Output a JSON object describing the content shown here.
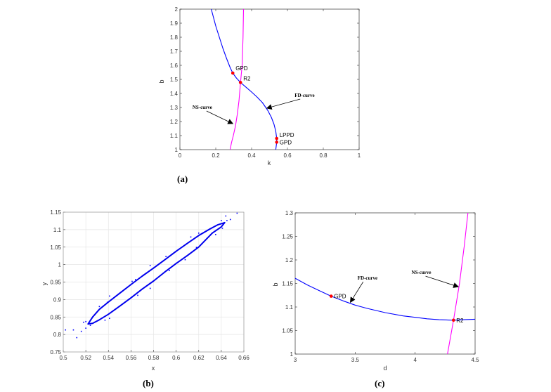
{
  "chart_data": [
    {
      "id": "a",
      "type": "line",
      "caption": "(a)",
      "xlabel": "k",
      "ylabel": "b",
      "xlim": [
        0,
        1
      ],
      "ylim": [
        1,
        2
      ],
      "xticks": [
        0,
        0.2,
        0.4,
        0.6,
        0.8,
        1
      ],
      "xtick_labels": [
        "0",
        "0.2",
        "0.4",
        "0.6",
        "0.8",
        "1"
      ],
      "yticks": [
        1,
        1.1,
        1.2,
        1.3,
        1.4,
        1.5,
        1.6,
        1.7,
        1.8,
        1.9,
        2
      ],
      "ytick_labels": [
        "1",
        "1.1",
        "1.2",
        "1.3",
        "1.4",
        "1.5",
        "1.6",
        "1.7",
        "1.8",
        "1.9",
        "2"
      ],
      "grid": false,
      "series": [
        {
          "color": "#0000ff",
          "points": [
            [
              0.175,
              2
            ],
            [
              0.2,
              1.88
            ],
            [
              0.22,
              1.8
            ],
            [
              0.24,
              1.72
            ],
            [
              0.26,
              1.65
            ],
            [
              0.28,
              1.585
            ],
            [
              0.295,
              1.545
            ],
            [
              0.315,
              1.51
            ],
            [
              0.338,
              1.478
            ],
            [
              0.37,
              1.443
            ],
            [
              0.4,
              1.41
            ],
            [
              0.43,
              1.375
            ],
            [
              0.46,
              1.335
            ],
            [
              0.49,
              1.28
            ],
            [
              0.51,
              1.23
            ],
            [
              0.525,
              1.18
            ],
            [
              0.535,
              1.13
            ],
            [
              0.54,
              1.08
            ],
            [
              0.54,
              1.053
            ],
            [
              0.535,
              1.0
            ]
          ]
        },
        {
          "color": "#ff00ff",
          "points": [
            [
              0.355,
              2
            ],
            [
              0.352,
              1.8
            ],
            [
              0.347,
              1.6
            ],
            [
              0.338,
              1.478
            ],
            [
              0.33,
              1.35
            ],
            [
              0.32,
              1.25
            ],
            [
              0.31,
              1.17
            ],
            [
              0.298,
              1.1
            ],
            [
              0.288,
              1.05
            ],
            [
              0.28,
              1.0
            ]
          ]
        }
      ],
      "markers": [
        {
          "label": "GPD",
          "x": 0.295,
          "y": 1.545
        },
        {
          "label": "R2",
          "x": 0.338,
          "y": 1.478
        },
        {
          "label": "LPPD",
          "x": 0.54,
          "y": 1.08
        },
        {
          "label": "GPD",
          "x": 0.54,
          "y": 1.053
        }
      ],
      "annotations": [
        {
          "text": "NS-curve",
          "x": 0.07,
          "y": 1.29,
          "arrow_to": [
            0.295,
            1.185
          ]
        },
        {
          "text": "FD-curve",
          "x": 0.64,
          "y": 1.375,
          "arrow_to": [
            0.485,
            1.295
          ]
        }
      ]
    },
    {
      "id": "b",
      "type": "scatter",
      "caption": "(b)",
      "xlabel": "x",
      "ylabel": "y",
      "xlim": [
        0.5,
        0.66
      ],
      "ylim": [
        0.75,
        1.15
      ],
      "xticks": [
        0.5,
        0.52,
        0.54,
        0.56,
        0.58,
        0.6,
        0.62,
        0.64,
        0.66
      ],
      "xtick_labels": [
        "0.5",
        "0.52",
        "0.54",
        "0.56",
        "0.58",
        "0.6",
        "0.62",
        "0.64",
        "0.66"
      ],
      "yticks": [
        0.75,
        0.8,
        0.85,
        0.9,
        0.95,
        1,
        1.05,
        1.1,
        1.15
      ],
      "ytick_labels": [
        "0.75",
        "0.8",
        "0.85",
        "0.9",
        "0.95",
        "1",
        "1.05",
        "1.1",
        "1.15"
      ],
      "grid": true,
      "series": [
        {
          "color": "#0000ee",
          "closed": true,
          "points": [
            [
              0.522,
              0.83
            ],
            [
              0.526,
              0.85
            ],
            [
              0.532,
              0.872
            ],
            [
              0.54,
              0.893
            ],
            [
              0.55,
              0.918
            ],
            [
              0.56,
              0.943
            ],
            [
              0.57,
              0.967
            ],
            [
              0.58,
              0.99
            ],
            [
              0.59,
              1.014
            ],
            [
              0.6,
              1.038
            ],
            [
              0.61,
              1.061
            ],
            [
              0.62,
              1.083
            ],
            [
              0.63,
              1.102
            ],
            [
              0.637,
              1.114
            ],
            [
              0.643,
              1.12
            ],
            [
              0.64,
              1.108
            ],
            [
              0.632,
              1.09
            ],
            [
              0.62,
              1.05
            ],
            [
              0.61,
              1.026
            ],
            [
              0.6,
              1.003
            ],
            [
              0.59,
              0.979
            ],
            [
              0.58,
              0.953
            ],
            [
              0.57,
              0.93
            ],
            [
              0.56,
              0.905
            ],
            [
              0.55,
              0.881
            ],
            [
              0.54,
              0.858
            ],
            [
              0.532,
              0.842
            ],
            [
              0.526,
              0.832
            ],
            [
              0.522,
              0.83
            ]
          ]
        }
      ],
      "scatter_points": [
        [
          0.502,
          0.813
        ],
        [
          0.509,
          0.813
        ],
        [
          0.512,
          0.791
        ],
        [
          0.516,
          0.809
        ],
        [
          0.518,
          0.835
        ],
        [
          0.52,
          0.818
        ],
        [
          0.52,
          0.837
        ],
        [
          0.524,
          0.826
        ],
        [
          0.532,
          0.88
        ],
        [
          0.537,
          0.841
        ],
        [
          0.541,
          0.846
        ],
        [
          0.541,
          0.91
        ],
        [
          0.539,
          0.892
        ],
        [
          0.561,
          0.952
        ],
        [
          0.564,
          0.957
        ],
        [
          0.566,
          0.912
        ],
        [
          0.577,
          0.997
        ],
        [
          0.577,
          0.932
        ],
        [
          0.591,
          1.023
        ],
        [
          0.594,
          0.983
        ],
        [
          0.608,
          1.014
        ],
        [
          0.613,
          1.079
        ],
        [
          0.62,
          1.09
        ],
        [
          0.618,
          1.049
        ],
        [
          0.635,
          1.086
        ],
        [
          0.64,
          1.126
        ],
        [
          0.641,
          1.104
        ],
        [
          0.644,
          1.139
        ],
        [
          0.645,
          1.126
        ],
        [
          0.648,
          1.129
        ],
        [
          0.654,
          1.147
        ],
        [
          0.642,
          1.119
        ]
      ],
      "scatter_color": "#0000ff",
      "markers": [],
      "annotations": []
    },
    {
      "id": "c",
      "type": "line",
      "caption": "(c)",
      "xlabel": "d",
      "ylabel": "b",
      "xlim": [
        3,
        4.5
      ],
      "ylim": [
        1,
        1.3
      ],
      "xticks": [
        3,
        3.5,
        4,
        4.5
      ],
      "xtick_labels": [
        "3",
        "3.5",
        "4",
        "4.5"
      ],
      "yticks": [
        1,
        1.05,
        1.1,
        1.15,
        1.2,
        1.25,
        1.3
      ],
      "ytick_labels": [
        "1",
        "1.05",
        "1.1",
        "1.15",
        "1.2",
        "1.25",
        "1.3"
      ],
      "grid": false,
      "series": [
        {
          "color": "#0000ff",
          "points": [
            [
              3,
              1.161
            ],
            [
              3.1,
              1.147
            ],
            [
              3.2,
              1.135
            ],
            [
              3.3,
              1.123
            ],
            [
              3.4,
              1.113
            ],
            [
              3.5,
              1.104
            ],
            [
              3.6,
              1.097
            ],
            [
              3.75,
              1.088
            ],
            [
              3.9,
              1.081
            ],
            [
              4,
              1.078
            ],
            [
              4.1,
              1.075
            ],
            [
              4.2,
              1.073
            ],
            [
              4.32,
              1.072
            ],
            [
              4.4,
              1.073
            ],
            [
              4.5,
              1.074
            ]
          ]
        },
        {
          "color": "#ff00ff",
          "points": [
            [
              4.27,
              1.0
            ],
            [
              4.32,
              1.072
            ],
            [
              4.37,
              1.15
            ],
            [
              4.41,
              1.23
            ],
            [
              4.44,
              1.3
            ]
          ]
        }
      ],
      "markers": [
        {
          "label": "GPD",
          "x": 3.3,
          "y": 1.123
        },
        {
          "label": "R2",
          "x": 4.32,
          "y": 1.072
        }
      ],
      "annotations": [
        {
          "text": "FD-curve",
          "x": 3.52,
          "y": 1.158,
          "arrow_to": [
            3.46,
            1.11
          ]
        },
        {
          "text": "NS-curve",
          "x": 3.97,
          "y": 1.17,
          "arrow_to": [
            4.36,
            1.143
          ]
        }
      ]
    }
  ],
  "colors": {
    "fd_curve": "#0000ff",
    "ns_curve": "#ff00ff",
    "marker": "#ff0000",
    "arrow": "#000000"
  }
}
